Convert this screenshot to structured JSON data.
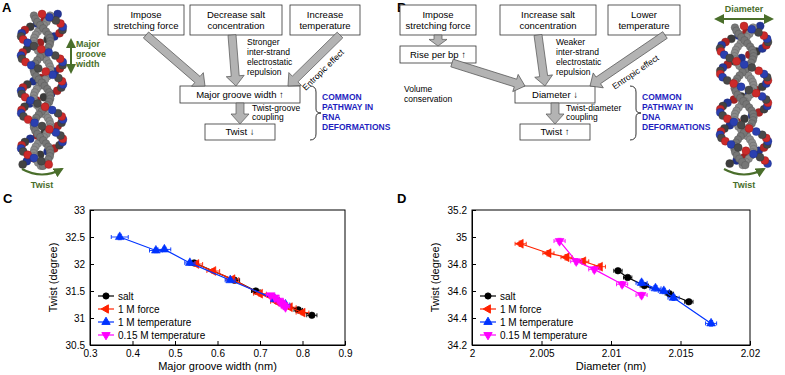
{
  "diagrams": [
    {
      "title": "A",
      "helix_labels": {
        "groove": "Major groove width",
        "twist": "Twist"
      },
      "boxes": {
        "force": "Impose stretching force",
        "salt": "Decrease salt concentration",
        "temperature": "Increase temperature",
        "middle": "Major groove width ↑",
        "result": "Twist ↓"
      },
      "arrow_labels": {
        "salt": "Stronger inter-strand electrostatic repulsion",
        "temperature": "Entropic effect",
        "coupling": "Twist-groove coupling"
      },
      "pathway": "COMMON PATHWAY IN RNA DEFORMATIONS"
    },
    {
      "title": "B",
      "helix_labels": {
        "diameter": "Diameter",
        "twist": "Twist"
      },
      "boxes": {
        "force": "Impose stretching force",
        "rise": "Rise per bp ↑",
        "salt": "Increase salt concentration",
        "temperature": "Lower temperature",
        "middle": "Diameter ↓",
        "result": "Twist ↑"
      },
      "arrow_labels": {
        "volume": "Volume conservation",
        "salt": "Weaker inter-strand electrostatic repulsion",
        "temperature": "Entropic effect",
        "coupling": "Twist-diameter coupling"
      },
      "pathway": "COMMON PATHWAY IN DNA DEFORMATIONS"
    }
  ],
  "chart_data": [
    {
      "title": "C",
      "type": "line",
      "x_label": "Major groove width (nm)",
      "y_label": "Twist (degree)",
      "xlim": [
        0.3,
        0.9
      ],
      "ylim": [
        30.5,
        33
      ],
      "xticks": [
        0.3,
        0.4,
        0.5,
        0.6,
        0.7,
        0.8,
        0.9
      ],
      "yticks": [
        30.5,
        31,
        31.5,
        32,
        32.5,
        33
      ],
      "legend": "lower left",
      "series": [
        {
          "name": "salt",
          "color": "#000000",
          "marker": "circle",
          "x": [
            0.822,
            0.79,
            0.745,
            0.69,
            0.64,
            0.545
          ],
          "values": [
            31.05,
            31.15,
            31.3,
            31.5,
            31.7,
            32.02
          ],
          "x_errors": [
            0.012,
            0.01,
            0.01,
            0.01,
            0.012,
            0.01
          ],
          "y_errors": [
            0.03,
            0.03,
            0.03,
            0.03,
            0.03,
            0.03
          ]
        },
        {
          "name": "1 M force",
          "color": "#ff2200",
          "marker": "triangle-left",
          "x": [
            0.8,
            0.77,
            0.74,
            0.7,
            0.635,
            0.59,
            0.55
          ],
          "values": [
            31.1,
            31.2,
            31.3,
            31.45,
            31.72,
            31.87,
            32.0
          ],
          "x_errors": [
            0.015,
            0.015,
            0.015,
            0.015,
            0.015,
            0.015,
            0.015
          ],
          "y_errors": [
            0.04,
            0.04,
            0.04,
            0.04,
            0.04,
            0.04,
            0.04
          ]
        },
        {
          "name": "1 M temperature",
          "color": "#0033ff",
          "marker": "triangle-up",
          "x": [
            0.37,
            0.455,
            0.475,
            0.535,
            0.63,
            0.735,
            0.76
          ],
          "values": [
            32.5,
            32.25,
            32.27,
            32.02,
            31.7,
            31.35,
            31.25
          ],
          "x_errors": [
            0.02,
            0.015,
            0.015,
            0.012,
            0.012,
            0.01,
            0.01
          ],
          "y_errors": [
            0.05,
            0.04,
            0.04,
            0.04,
            0.03,
            0.03,
            0.03
          ]
        },
        {
          "name": "0.15 M temperature",
          "color": "#ff00ff",
          "marker": "triangle-down",
          "x": [
            0.725,
            0.735,
            0.745,
            0.75,
            0.755,
            0.76
          ],
          "values": [
            31.42,
            31.38,
            31.32,
            31.28,
            31.24,
            31.2
          ],
          "x_errors": [
            0.01,
            0.01,
            0.01,
            0.01,
            0.01,
            0.01
          ],
          "y_errors": [
            0.03,
            0.03,
            0.03,
            0.03,
            0.03,
            0.03
          ]
        }
      ]
    },
    {
      "title": "D",
      "type": "line",
      "x_label": "Diameter (nm)",
      "y_label": "Twist (degree)",
      "xlim": [
        2,
        2.02
      ],
      "ylim": [
        34.2,
        35.2
      ],
      "xticks": [
        2,
        2.005,
        2.01,
        2.015,
        2.02
      ],
      "yticks": [
        34.2,
        34.4,
        34.6,
        34.8,
        35,
        35.2
      ],
      "legend": "lower left",
      "series": [
        {
          "name": "salt",
          "color": "#000000",
          "marker": "circle",
          "x": [
            2.0105,
            2.0112,
            2.0124,
            2.0142,
            2.0156
          ],
          "values": [
            34.75,
            34.7,
            34.64,
            34.58,
            34.52
          ],
          "x_errors": [
            0.0003,
            0.0003,
            0.0003,
            0.0003,
            0.0003
          ],
          "y_errors": [
            0.015,
            0.015,
            0.015,
            0.015,
            0.015
          ]
        },
        {
          "name": "1 M force",
          "color": "#ff2200",
          "marker": "triangle-left",
          "x": [
            2.0035,
            2.0055,
            2.0068,
            2.008,
            2.0092
          ],
          "values": [
            34.95,
            34.88,
            34.85,
            34.82,
            34.78
          ],
          "x_errors": [
            0.0004,
            0.0004,
            0.0004,
            0.0004,
            0.0004
          ],
          "y_errors": [
            0.02,
            0.02,
            0.02,
            0.02,
            0.02
          ]
        },
        {
          "name": "1 M temperature",
          "color": "#0033ff",
          "marker": "triangle-up",
          "x": [
            2.0122,
            2.0132,
            2.0138,
            2.0145,
            2.0172
          ],
          "values": [
            34.66,
            34.62,
            34.6,
            34.55,
            34.36
          ],
          "x_errors": [
            0.0004,
            0.0004,
            0.0004,
            0.0004,
            0.0004
          ],
          "y_errors": [
            0.02,
            0.02,
            0.02,
            0.02,
            0.02
          ]
        },
        {
          "name": "0.15 M temperature",
          "color": "#ff00ff",
          "marker": "triangle-down",
          "x": [
            2.0063,
            2.0075,
            2.0088,
            2.0108,
            2.0122
          ],
          "values": [
            34.97,
            34.82,
            34.76,
            34.65,
            34.57
          ],
          "x_errors": [
            0.0004,
            0.0004,
            0.0004,
            0.0004,
            0.0004
          ],
          "y_errors": [
            0.02,
            0.02,
            0.02,
            0.02,
            0.02
          ]
        }
      ]
    }
  ]
}
